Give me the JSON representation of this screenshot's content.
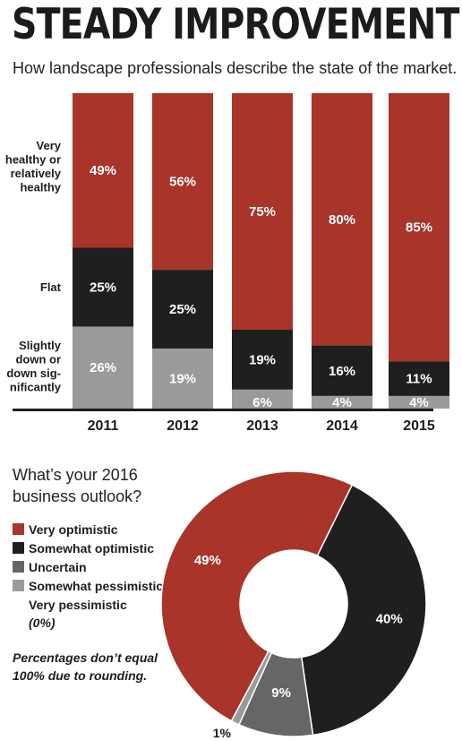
{
  "title": "STEADY IMPROVEMENT",
  "subtitle": "How landscape professionals describe the state of the market.",
  "colors": {
    "red": "#a8342a",
    "black": "#1f1f1f",
    "gray": "#9a9a9a",
    "darkgray": "#666666"
  },
  "chart_data": [
    {
      "type": "bar",
      "stacked": true,
      "categories": [
        "2011",
        "2012",
        "2013",
        "2014",
        "2015"
      ],
      "row_labels": [
        [
          "Very",
          "healthy or",
          "relatively",
          "healthy"
        ],
        [
          "Flat"
        ],
        [
          "Slightly",
          "down or",
          "down sig-",
          "nificantly"
        ]
      ],
      "series": [
        {
          "name": "Very healthy or relatively healthy",
          "values": [
            49,
            56,
            75,
            80,
            85
          ],
          "labels": [
            "49%",
            "56%",
            "75%",
            "80%",
            "85%"
          ],
          "color": "#a8342a"
        },
        {
          "name": "Flat",
          "values": [
            25,
            25,
            19,
            16,
            11
          ],
          "labels": [
            "25%",
            "25%",
            "19%",
            "16%",
            "11%"
          ],
          "color": "#1f1f1f"
        },
        {
          "name": "Slightly down or down significantly",
          "values": [
            26,
            19,
            6,
            4,
            4
          ],
          "labels": [
            "26%",
            "19%",
            "6%",
            "4%",
            "4%"
          ],
          "color": "#9a9a9a"
        }
      ],
      "ylim": [
        0,
        100
      ]
    },
    {
      "type": "pie",
      "donut": true,
      "title": "What’s your 2016 business outlook?",
      "slices": [
        {
          "name": "Very optimistic",
          "value": 49,
          "label": "49%",
          "color": "#a8342a"
        },
        {
          "name": "Somewhat optimistic",
          "value": 40,
          "label": "40%",
          "color": "#1f1f1f"
        },
        {
          "name": "Uncertain",
          "value": 9,
          "label": "9%",
          "color": "#666666"
        },
        {
          "name": "Somewhat pessimistic",
          "value": 1,
          "label": "1%",
          "color": "#9a9a9a"
        },
        {
          "name": "Very pessimistic",
          "value": 0,
          "label": "(0%)",
          "color": null
        }
      ]
    }
  ],
  "pie_title_lines": [
    "What’s your 2016",
    "business outlook?"
  ],
  "legend": {
    "very_optimistic": "Very optimistic",
    "somewhat_optimistic": "Somewhat optimistic",
    "uncertain": "Uncertain",
    "somewhat_pessimistic": "Somewhat pessimistic",
    "very_pessimistic": "Very pessimistic",
    "very_pessimistic_value": "(0%)"
  },
  "footnote_lines": [
    "Percentages don’t equal",
    "100% due to rounding."
  ]
}
